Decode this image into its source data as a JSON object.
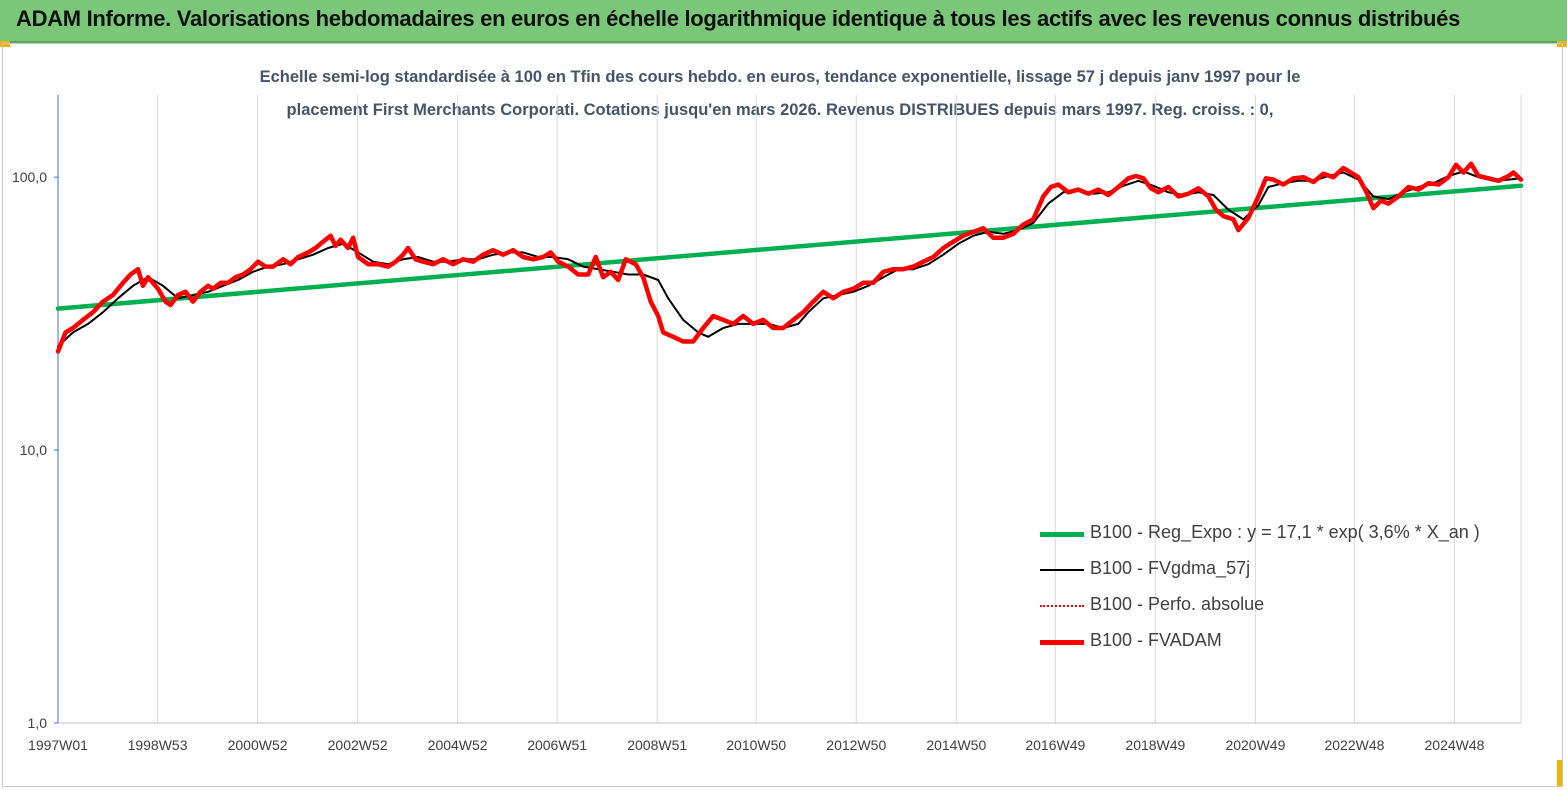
{
  "header": {
    "title": "ADAM Informe. Valorisations hebdomadaires en euros en échelle logarithmique identique à tous les actifs avec les revenus connus distribués"
  },
  "chart_data": {
    "type": "line",
    "subtitle_line1": "Echelle semi-log standardisée à 100 en Tfin des cours hebdo. en euros, tendance exponentielle, lissage 57 j depuis janv 1997 pour le",
    "subtitle_line2": "placement First Merchants  Corporati. Cotations jusqu'en mars 2026. Revenus DISTRIBUES depuis mars 1997.  Reg. croiss. : 0,",
    "y_scale": "log",
    "ylim": [
      1,
      200
    ],
    "y_ticks": [
      {
        "value": 1,
        "label": "1,0"
      },
      {
        "value": 10,
        "label": "10,0"
      },
      {
        "value": 100,
        "label": "100,0"
      }
    ],
    "xlim": [
      1997.0,
      2026.25
    ],
    "x_ticks": [
      {
        "x": 1997.0,
        "label": "1997W01"
      },
      {
        "x": 1998.99,
        "label": "1998W53"
      },
      {
        "x": 2000.99,
        "label": "2000W52"
      },
      {
        "x": 2002.99,
        "label": "2002W52"
      },
      {
        "x": 2004.99,
        "label": "2004W52"
      },
      {
        "x": 2006.98,
        "label": "2006W51"
      },
      {
        "x": 2008.98,
        "label": "2008W51"
      },
      {
        "x": 2010.96,
        "label": "2010W50"
      },
      {
        "x": 2012.96,
        "label": "2012W50"
      },
      {
        "x": 2014.96,
        "label": "2014W50"
      },
      {
        "x": 2016.94,
        "label": "2016W49"
      },
      {
        "x": 2018.94,
        "label": "2018W49"
      },
      {
        "x": 2020.94,
        "label": "2020W49"
      },
      {
        "x": 2022.92,
        "label": "2022W48"
      },
      {
        "x": 2024.92,
        "label": "2024W48"
      }
    ],
    "grid": "vertical",
    "legend_position": "bottom-right",
    "series": [
      {
        "name": "B100 - Reg_Expo : y = 17,1 *  exp( 3,6% *  X_an )",
        "color": "#00b050",
        "style": "thick",
        "points": [
          [
            1997.0,
            33
          ],
          [
            2026.25,
            93
          ]
        ]
      },
      {
        "name": "B100 - FVgdma_57j",
        "color": "#000000",
        "style": "thin",
        "points": [
          [
            1997.0,
            24
          ],
          [
            1997.3,
            27
          ],
          [
            1997.6,
            29
          ],
          [
            1997.9,
            32
          ],
          [
            1998.2,
            36
          ],
          [
            1998.5,
            40
          ],
          [
            1998.8,
            43
          ],
          [
            1999.1,
            40
          ],
          [
            1999.4,
            36
          ],
          [
            1999.7,
            37
          ],
          [
            2000.0,
            38
          ],
          [
            2000.3,
            40
          ],
          [
            2000.6,
            42
          ],
          [
            2000.9,
            45
          ],
          [
            2001.2,
            47
          ],
          [
            2001.5,
            48
          ],
          [
            2001.8,
            50
          ],
          [
            2002.1,
            52
          ],
          [
            2002.4,
            55
          ],
          [
            2002.7,
            57
          ],
          [
            2003.0,
            53
          ],
          [
            2003.3,
            49
          ],
          [
            2003.6,
            48
          ],
          [
            2003.9,
            50
          ],
          [
            2004.2,
            51
          ],
          [
            2004.5,
            49
          ],
          [
            2004.8,
            49
          ],
          [
            2005.1,
            50
          ],
          [
            2005.4,
            50
          ],
          [
            2005.7,
            52
          ],
          [
            2006.0,
            53
          ],
          [
            2006.3,
            53
          ],
          [
            2006.6,
            51
          ],
          [
            2006.9,
            51
          ],
          [
            2007.2,
            50
          ],
          [
            2007.5,
            47
          ],
          [
            2007.8,
            46
          ],
          [
            2008.1,
            45
          ],
          [
            2008.4,
            44
          ],
          [
            2008.7,
            44
          ],
          [
            2009.0,
            42
          ],
          [
            2009.2,
            36
          ],
          [
            2009.5,
            30
          ],
          [
            2009.8,
            27
          ],
          [
            2010.0,
            26
          ],
          [
            2010.3,
            28
          ],
          [
            2010.6,
            29
          ],
          [
            2010.9,
            29
          ],
          [
            2011.2,
            29
          ],
          [
            2011.5,
            28
          ],
          [
            2011.8,
            29
          ],
          [
            2012.0,
            32
          ],
          [
            2012.3,
            36
          ],
          [
            2012.6,
            37
          ],
          [
            2012.9,
            38
          ],
          [
            2013.2,
            40
          ],
          [
            2013.5,
            43
          ],
          [
            2013.8,
            46
          ],
          [
            2014.1,
            46
          ],
          [
            2014.4,
            48
          ],
          [
            2014.7,
            52
          ],
          [
            2015.0,
            57
          ],
          [
            2015.3,
            61
          ],
          [
            2015.6,
            63
          ],
          [
            2015.9,
            62
          ],
          [
            2016.2,
            64
          ],
          [
            2016.5,
            68
          ],
          [
            2016.8,
            80
          ],
          [
            2017.1,
            88
          ],
          [
            2017.4,
            89
          ],
          [
            2017.7,
            87
          ],
          [
            2018.0,
            88
          ],
          [
            2018.3,
            93
          ],
          [
            2018.6,
            97
          ],
          [
            2018.9,
            93
          ],
          [
            2019.2,
            88
          ],
          [
            2019.5,
            86
          ],
          [
            2019.8,
            88
          ],
          [
            2020.1,
            86
          ],
          [
            2020.4,
            76
          ],
          [
            2020.7,
            70
          ],
          [
            2021.0,
            79
          ],
          [
            2021.2,
            92
          ],
          [
            2021.5,
            95
          ],
          [
            2021.8,
            97
          ],
          [
            2022.1,
            97
          ],
          [
            2022.4,
            101
          ],
          [
            2022.7,
            104
          ],
          [
            2023.0,
            98
          ],
          [
            2023.3,
            85
          ],
          [
            2023.6,
            83
          ],
          [
            2023.9,
            88
          ],
          [
            2024.2,
            92
          ],
          [
            2024.5,
            95
          ],
          [
            2024.8,
            101
          ],
          [
            2025.1,
            105
          ],
          [
            2025.4,
            100
          ],
          [
            2025.7,
            97
          ],
          [
            2026.0,
            98
          ],
          [
            2026.25,
            99
          ]
        ]
      },
      {
        "name": "B100 - Perfo. absolue",
        "color": "#ff0000",
        "style": "dotted",
        "points": []
      },
      {
        "name": "B100 - FVADAM",
        "color": "#ff0000",
        "style": "thick",
        "points": [
          [
            1997.0,
            23
          ],
          [
            1997.15,
            27
          ],
          [
            1997.3,
            28
          ],
          [
            1997.5,
            30
          ],
          [
            1997.7,
            32
          ],
          [
            1997.9,
            35
          ],
          [
            1998.1,
            37
          ],
          [
            1998.3,
            41
          ],
          [
            1998.45,
            44
          ],
          [
            1998.6,
            46
          ],
          [
            1998.7,
            40
          ],
          [
            1998.8,
            43
          ],
          [
            1999.0,
            39
          ],
          [
            1999.15,
            35
          ],
          [
            1999.25,
            34
          ],
          [
            1999.4,
            37
          ],
          [
            1999.55,
            38
          ],
          [
            1999.7,
            35
          ],
          [
            1999.85,
            38
          ],
          [
            2000.0,
            40
          ],
          [
            2000.1,
            39
          ],
          [
            2000.25,
            41
          ],
          [
            2000.4,
            41
          ],
          [
            2000.55,
            43
          ],
          [
            2000.7,
            44
          ],
          [
            2000.85,
            46
          ],
          [
            2001.0,
            49
          ],
          [
            2001.15,
            47
          ],
          [
            2001.3,
            47
          ],
          [
            2001.5,
            50
          ],
          [
            2001.65,
            48
          ],
          [
            2001.8,
            51
          ],
          [
            2002.0,
            53
          ],
          [
            2002.15,
            55
          ],
          [
            2002.3,
            58
          ],
          [
            2002.45,
            61
          ],
          [
            2002.55,
            56
          ],
          [
            2002.65,
            59
          ],
          [
            2002.8,
            55
          ],
          [
            2002.9,
            60
          ],
          [
            2003.0,
            51
          ],
          [
            2003.2,
            48
          ],
          [
            2003.4,
            48
          ],
          [
            2003.6,
            47
          ],
          [
            2003.75,
            49
          ],
          [
            2003.9,
            52
          ],
          [
            2004.0,
            55
          ],
          [
            2004.15,
            50
          ],
          [
            2004.3,
            49
          ],
          [
            2004.5,
            48
          ],
          [
            2004.7,
            50
          ],
          [
            2004.9,
            48
          ],
          [
            2005.1,
            50
          ],
          [
            2005.3,
            49
          ],
          [
            2005.5,
            52
          ],
          [
            2005.7,
            54
          ],
          [
            2005.9,
            52
          ],
          [
            2006.1,
            54
          ],
          [
            2006.3,
            51
          ],
          [
            2006.5,
            50
          ],
          [
            2006.7,
            51
          ],
          [
            2006.85,
            53
          ],
          [
            2007.0,
            49
          ],
          [
            2007.2,
            47
          ],
          [
            2007.4,
            44
          ],
          [
            2007.6,
            44
          ],
          [
            2007.75,
            51
          ],
          [
            2007.9,
            43
          ],
          [
            2008.05,
            45
          ],
          [
            2008.2,
            42
          ],
          [
            2008.35,
            50
          ],
          [
            2008.55,
            48
          ],
          [
            2008.7,
            43
          ],
          [
            2008.85,
            35
          ],
          [
            2009.0,
            31
          ],
          [
            2009.1,
            27
          ],
          [
            2009.3,
            26
          ],
          [
            2009.5,
            25
          ],
          [
            2009.7,
            25
          ],
          [
            2009.9,
            28
          ],
          [
            2010.1,
            31
          ],
          [
            2010.3,
            30
          ],
          [
            2010.5,
            29
          ],
          [
            2010.7,
            31
          ],
          [
            2010.9,
            29
          ],
          [
            2011.1,
            30
          ],
          [
            2011.3,
            28
          ],
          [
            2011.5,
            28
          ],
          [
            2011.7,
            30
          ],
          [
            2011.9,
            32
          ],
          [
            2012.1,
            35
          ],
          [
            2012.3,
            38
          ],
          [
            2012.5,
            36
          ],
          [
            2012.7,
            38
          ],
          [
            2012.9,
            39
          ],
          [
            2013.1,
            41
          ],
          [
            2013.3,
            41
          ],
          [
            2013.5,
            45
          ],
          [
            2013.7,
            46
          ],
          [
            2013.9,
            46
          ],
          [
            2014.1,
            47
          ],
          [
            2014.3,
            49
          ],
          [
            2014.5,
            51
          ],
          [
            2014.7,
            55
          ],
          [
            2014.9,
            58
          ],
          [
            2015.1,
            61
          ],
          [
            2015.3,
            63
          ],
          [
            2015.5,
            65
          ],
          [
            2015.7,
            60
          ],
          [
            2015.9,
            60
          ],
          [
            2016.1,
            62
          ],
          [
            2016.3,
            67
          ],
          [
            2016.5,
            70
          ],
          [
            2016.7,
            85
          ],
          [
            2016.85,
            92
          ],
          [
            2017.0,
            94
          ],
          [
            2017.2,
            88
          ],
          [
            2017.4,
            90
          ],
          [
            2017.6,
            87
          ],
          [
            2017.8,
            90
          ],
          [
            2018.0,
            86
          ],
          [
            2018.2,
            92
          ],
          [
            2018.4,
            99
          ],
          [
            2018.55,
            101
          ],
          [
            2018.7,
            99
          ],
          [
            2018.85,
            91
          ],
          [
            2019.0,
            88
          ],
          [
            2019.2,
            92
          ],
          [
            2019.4,
            85
          ],
          [
            2019.6,
            87
          ],
          [
            2019.8,
            91
          ],
          [
            2020.0,
            85
          ],
          [
            2020.15,
            76
          ],
          [
            2020.3,
            72
          ],
          [
            2020.5,
            70
          ],
          [
            2020.6,
            64
          ],
          [
            2020.8,
            71
          ],
          [
            2021.0,
            85
          ],
          [
            2021.15,
            99
          ],
          [
            2021.3,
            98
          ],
          [
            2021.5,
            94
          ],
          [
            2021.7,
            99
          ],
          [
            2021.9,
            100
          ],
          [
            2022.1,
            96
          ],
          [
            2022.3,
            103
          ],
          [
            2022.5,
            100
          ],
          [
            2022.7,
            108
          ],
          [
            2022.85,
            104
          ],
          [
            2023.0,
            100
          ],
          [
            2023.15,
            89
          ],
          [
            2023.3,
            77
          ],
          [
            2023.45,
            82
          ],
          [
            2023.6,
            80
          ],
          [
            2023.8,
            85
          ],
          [
            2024.0,
            92
          ],
          [
            2024.2,
            90
          ],
          [
            2024.4,
            95
          ],
          [
            2024.6,
            94
          ],
          [
            2024.8,
            100
          ],
          [
            2024.95,
            111
          ],
          [
            2025.1,
            104
          ],
          [
            2025.25,
            112
          ],
          [
            2025.4,
            101
          ],
          [
            2025.6,
            99
          ],
          [
            2025.8,
            97
          ],
          [
            2026.0,
            101
          ],
          [
            2026.1,
            104
          ],
          [
            2026.25,
            98
          ]
        ]
      }
    ]
  }
}
